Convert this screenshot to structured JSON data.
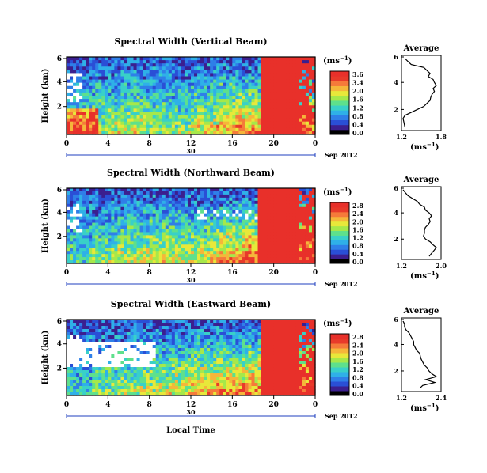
{
  "colors": {
    "colorscale": [
      "#000000",
      "#3b1f8f",
      "#2a4fd6",
      "#2f7fe8",
      "#2fb0e8",
      "#39d0c8",
      "#5ee08c",
      "#a6e84a",
      "#e8e83a",
      "#f5b63a",
      "#f57a3a",
      "#e83a2a",
      "#e8302a"
    ],
    "axis": "#000000",
    "nodata": "#ffffff",
    "link": "#1f3fbf"
  },
  "xaxis": {
    "ticks": [
      "0",
      "4",
      "8",
      "12",
      "16",
      "20",
      "0"
    ],
    "day_label": "30",
    "month_label": "Sep 2012",
    "xlabel": "Local Time"
  },
  "panels": [
    {
      "title": "Spectral Width (Vertical Beam)",
      "ylabel": "Height (km)",
      "yticks": [
        "6",
        "4",
        "2"
      ],
      "cb_unit": "(ms",
      "cb_sup": "−1",
      "cb_unit_close": ")",
      "cb_ticks": [
        "3.6",
        "3.4",
        "2.0",
        "1.6",
        "1.2",
        "0.8",
        "0.4",
        "0.0"
      ],
      "avg_title": "Average",
      "avg_yticks": [
        "6",
        "4",
        "2"
      ],
      "avg_xticks": [
        "1.2",
        "1.8"
      ],
      "avg_xlabel": "(ms",
      "avg_xsup": "−1",
      "avg_xclose": ")",
      "avg_profile": [
        1.25,
        1.3,
        1.35,
        1.55,
        1.6,
        1.65,
        1.62,
        1.7,
        1.72,
        1.75,
        1.7,
        1.72,
        1.68,
        1.66,
        1.65,
        1.6,
        1.55,
        1.45,
        1.35,
        1.25,
        1.22,
        1.23,
        1.24,
        1.25
      ],
      "heat": {
        "seed": 11,
        "base": 0.55,
        "late_red_start": 0.78,
        "profile": [
          0.4,
          0.5,
          0.55,
          0.5,
          0.45,
          0.6,
          0.7,
          0.65,
          0.5,
          0.45
        ]
      }
    },
    {
      "title": "Spectral Width (Northward Beam)",
      "ylabel": "Height (km)",
      "yticks": [
        "6",
        "4",
        "2"
      ],
      "cb_unit": "(ms",
      "cb_sup": "−1",
      "cb_unit_close": ")",
      "cb_ticks": [
        "2.8",
        "2.4",
        "2.0",
        "1.6",
        "1.2",
        "0.8",
        "0.4",
        "0.0"
      ],
      "avg_title": "Average",
      "avg_yticks": [
        "6",
        "4",
        "2"
      ],
      "avg_xticks": [
        "1.2",
        "2.0"
      ],
      "avg_xlabel": "(ms",
      "avg_xsup": "−1",
      "avg_xclose": ")",
      "avg_profile": [
        1.25,
        1.3,
        1.35,
        1.45,
        1.55,
        1.6,
        1.7,
        1.72,
        1.8,
        1.85,
        1.8,
        1.82,
        1.78,
        1.72,
        1.7,
        1.7,
        1.68,
        1.72,
        1.82,
        1.88,
        1.95,
        1.9,
        1.85,
        1.8
      ],
      "heat": {
        "seed": 29,
        "base": 0.62,
        "late_red_start": 0.76,
        "profile": [
          0.35,
          0.45,
          0.55,
          0.6,
          0.55,
          0.6,
          0.7,
          0.75,
          0.72,
          0.65
        ]
      }
    },
    {
      "title": "Spectral Width (Eastward Beam)",
      "ylabel": "Height (km)",
      "yticks": [
        "6",
        "4",
        "2"
      ],
      "cb_unit": "(ms",
      "cb_sup": "−1",
      "cb_unit_close": ")",
      "cb_ticks": [
        "2.8",
        "2.4",
        "2.0",
        "1.6",
        "1.2",
        "0.8",
        "0.4",
        "0.0"
      ],
      "avg_title": "Average",
      "avg_yticks": [
        "6",
        "4",
        "2"
      ],
      "avg_xticks": [
        "1.2",
        "2.4"
      ],
      "avg_xlabel": "(ms",
      "avg_xsup": "−1",
      "avg_xclose": ")",
      "avg_profile": [
        1.25,
        1.3,
        1.3,
        1.35,
        1.45,
        1.5,
        1.55,
        1.6,
        1.6,
        1.65,
        1.7,
        1.8,
        1.82,
        1.85,
        1.9,
        1.95,
        2.05,
        2.1,
        2.2,
        2.35,
        2.0,
        2.3,
        1.9,
        1.8
      ],
      "heat": {
        "seed": 47,
        "base": 0.62,
        "late_red_start": 0.77,
        "profile": [
          0.3,
          0.45,
          0.5,
          0.55,
          0.6,
          0.7,
          0.72,
          0.7,
          0.72,
          0.68
        ]
      }
    }
  ],
  "chart_data": [
    {
      "type": "heatmap",
      "title": "Spectral Width (Vertical Beam)",
      "xlabel": "Local Time",
      "ylabel": "Height (km)",
      "xticks": [
        "0",
        "4",
        "8",
        "12",
        "16",
        "20",
        "0"
      ],
      "yticks": [
        "6",
        "4",
        "2"
      ],
      "colorbar_label": "(ms−1)",
      "colorbar_ticks": [
        "3.6",
        "3.4",
        "2.0",
        "1.6",
        "1.2",
        "0.8",
        "0.4",
        "0.0"
      ],
      "date": "30 Sep 2012"
    },
    {
      "type": "line",
      "title": "Average",
      "xlabel": "(ms−1)",
      "xticks": [
        "1.2",
        "1.8"
      ],
      "yticks": [
        "6",
        "4",
        "2"
      ]
    },
    {
      "type": "heatmap",
      "title": "Spectral Width (Northward Beam)",
      "ylabel": "Height (km)",
      "xticks": [
        "0",
        "4",
        "8",
        "12",
        "16",
        "20",
        "0"
      ],
      "yticks": [
        "6",
        "4",
        "2"
      ],
      "colorbar_label": "(ms−1)",
      "colorbar_ticks": [
        "2.8",
        "2.4",
        "2.0",
        "1.6",
        "1.2",
        "0.8",
        "0.4",
        "0.0"
      ],
      "date": "30 Sep 2012"
    },
    {
      "type": "line",
      "title": "Average",
      "xlabel": "(ms−1)",
      "xticks": [
        "1.2",
        "2.0"
      ],
      "yticks": [
        "6",
        "4",
        "2"
      ]
    },
    {
      "type": "heatmap",
      "title": "Spectral Width (Eastward Beam)",
      "ylabel": "Height (km)",
      "xticks": [
        "0",
        "4",
        "8",
        "12",
        "16",
        "20",
        "0"
      ],
      "yticks": [
        "6",
        "4",
        "2"
      ],
      "colorbar_label": "(ms−1)",
      "colorbar_ticks": [
        "2.8",
        "2.4",
        "2.0",
        "1.6",
        "1.2",
        "0.8",
        "0.4",
        "0.0"
      ],
      "date": "30 Sep 2012"
    },
    {
      "type": "line",
      "title": "Average",
      "xlabel": "(ms−1)",
      "xticks": [
        "1.2",
        "2.4"
      ],
      "yticks": [
        "6",
        "4",
        "2"
      ]
    }
  ]
}
